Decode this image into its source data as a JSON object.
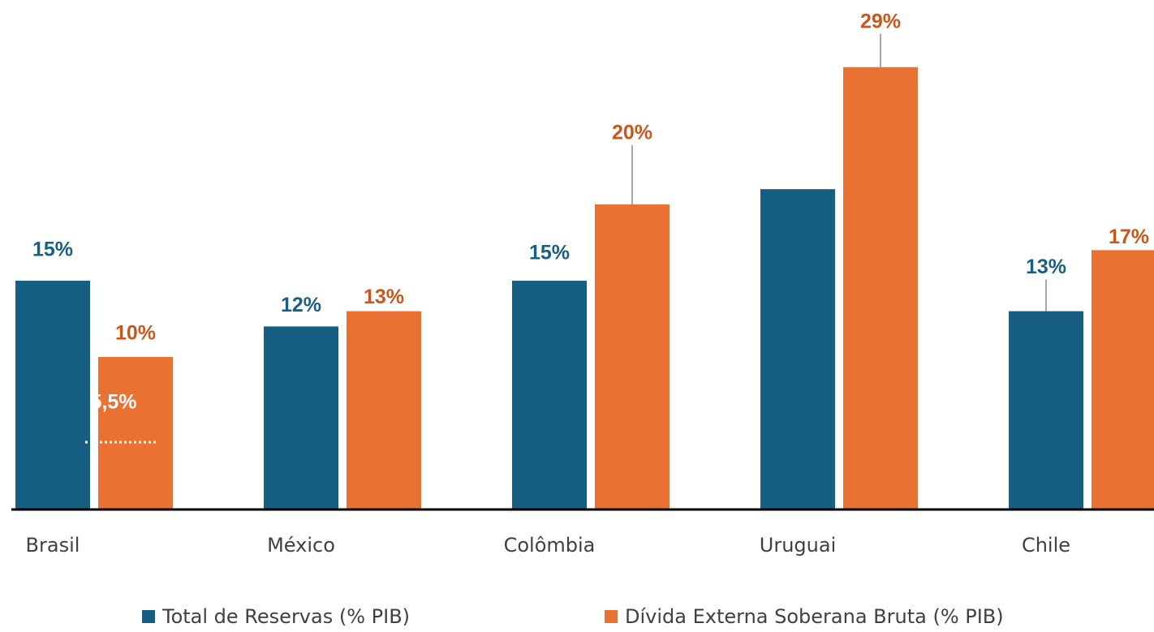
{
  "chart_data": {
    "type": "bar",
    "categories": [
      "Brasil",
      "México",
      "Colômbia",
      "Uruguai",
      "Chile"
    ],
    "series": [
      {
        "name": "Total de Reservas (% PIB)",
        "color": "#175f82",
        "label_color": "#1a5e82",
        "values": [
          15,
          12,
          15,
          21,
          13
        ],
        "value_labels": [
          "15%",
          "12%",
          "15%",
          null,
          "13%"
        ]
      },
      {
        "name": "Dívida Externa Soberana Bruta (% PIB)",
        "color": "#e97132",
        "label_color": "#c9561c",
        "values": [
          10,
          13,
          20,
          29,
          17
        ],
        "value_labels": [
          "10%",
          "13%",
          "20%",
          "29%",
          "17%"
        ]
      }
    ],
    "annotation": "5,5%",
    "ylim": [
      0,
      33.4
    ]
  }
}
